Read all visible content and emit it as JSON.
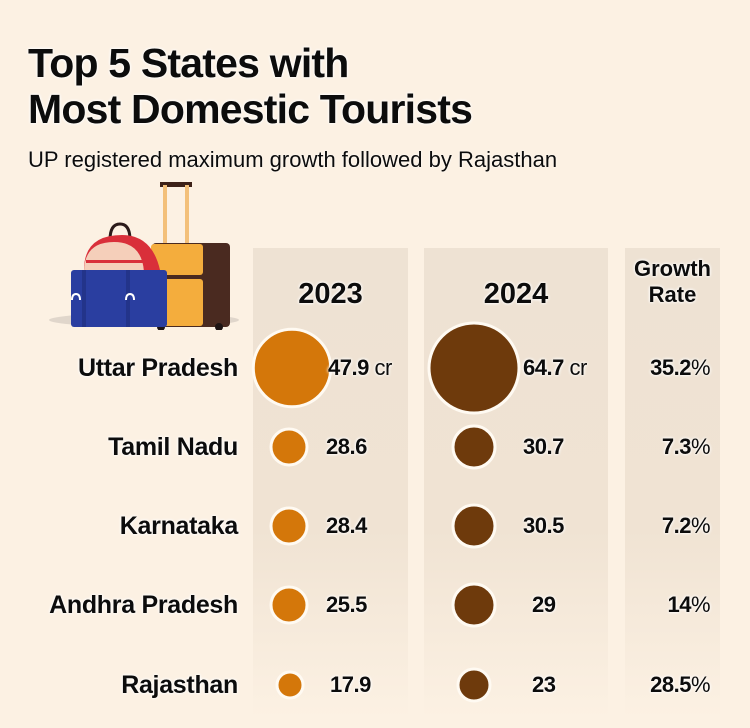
{
  "header": {
    "title_line1": "Top 5 States with",
    "title_line2": "Most Domestic Tourists",
    "subtitle": "UP registered maximum growth followed by Rajasthan"
  },
  "illustration": {
    "icon": "luggage-icon"
  },
  "colors": {
    "series_2023": "#d4770a",
    "series_2024": "#6e3a0c",
    "background": "#fcf1e3",
    "panel": "#eee2d3"
  },
  "chart_data": {
    "type": "table",
    "title": "Top 5 States with Most Domestic Tourists",
    "subtitle": "UP registered maximum growth followed by Rajasthan",
    "unit": "cr",
    "categories": [
      "Uttar Pradesh",
      "Tamil Nadu",
      "Karnataka",
      "Andhra Pradesh",
      "Rajasthan"
    ],
    "columns": [
      "2023",
      "2024",
      "Growth Rate"
    ],
    "series": [
      {
        "name": "2023",
        "values": [
          47.9,
          28.6,
          28.4,
          25.5,
          17.9
        ],
        "labels": [
          "47.9",
          "28.6",
          "28.4",
          "25.5",
          "17.9"
        ]
      },
      {
        "name": "2024",
        "values": [
          64.7,
          30.7,
          30.5,
          29,
          23
        ],
        "labels": [
          "64.7",
          "30.7",
          "30.5",
          "29",
          "23"
        ]
      }
    ],
    "unit_labels": [
      "cr",
      "",
      "",
      "",
      ""
    ],
    "growth_rate": {
      "name": "Growth Rate",
      "values": [
        35.2,
        7.3,
        7.2,
        14,
        28.5
      ],
      "labels": [
        "35.2",
        "7.3",
        "7.2",
        "14",
        "28.5"
      ],
      "suffix": "%"
    }
  }
}
